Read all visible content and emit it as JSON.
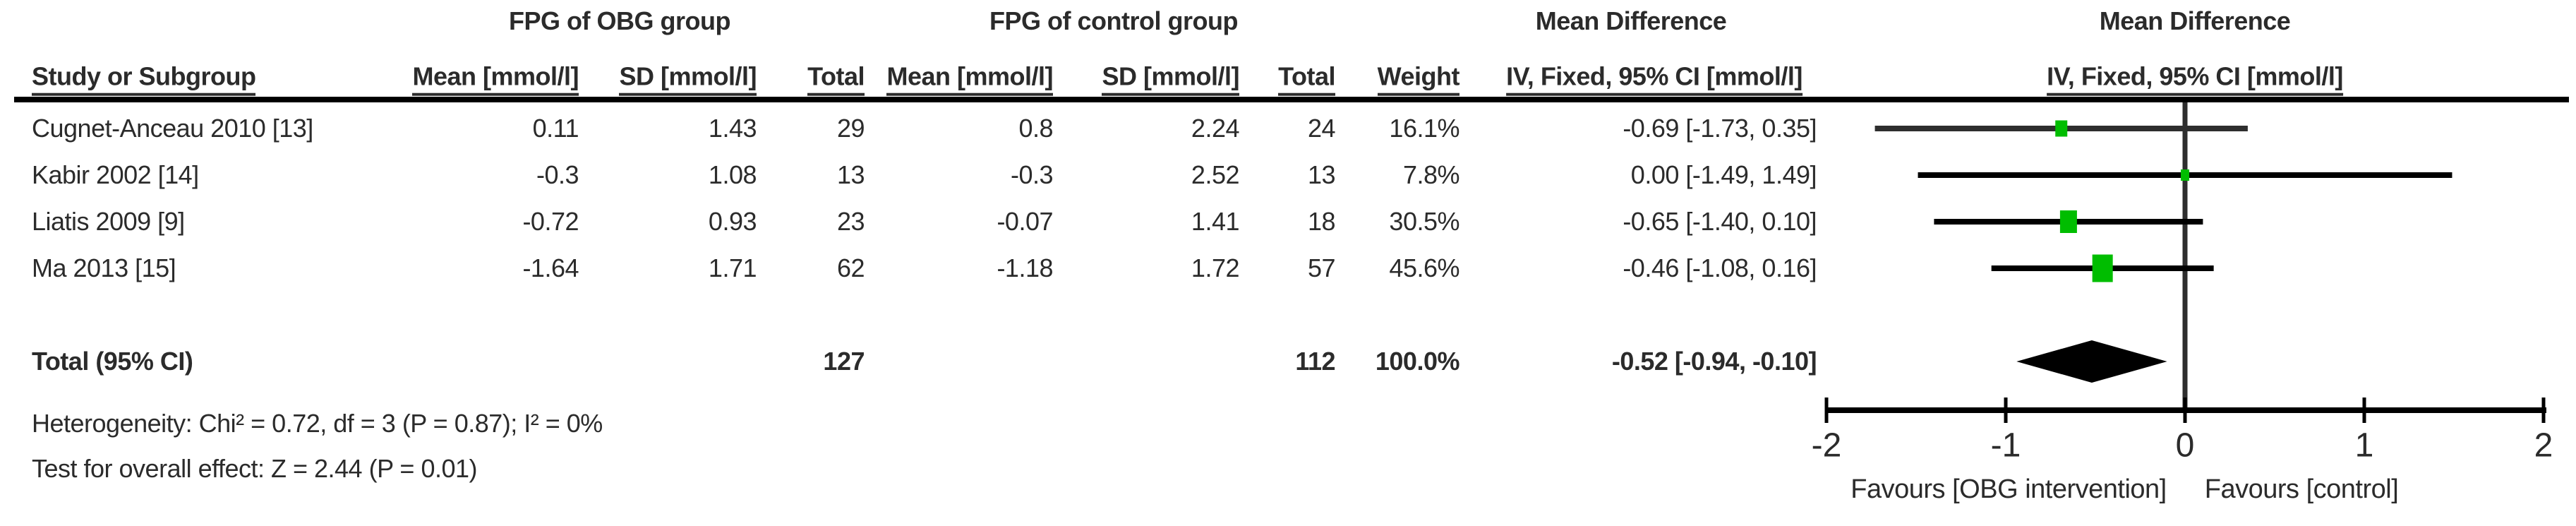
{
  "table": {
    "group_headers": [
      {
        "label": "FPG of OBG group"
      },
      {
        "label": "FPG of control group"
      },
      {
        "label": "Mean Difference"
      },
      {
        "label": "Mean Difference"
      }
    ],
    "columns": {
      "study": "Study or Subgroup",
      "mean1": "Mean [mmol/l]",
      "sd1": "SD [mmol/l]",
      "total1": "Total",
      "mean2": "Mean [mmol/l]",
      "sd2": "SD [mmol/l]",
      "total2": "Total",
      "weight": "Weight",
      "ci_text": "IV, Fixed, 95% CI [mmol/l]",
      "ci_plot": "IV, Fixed, 95% CI [mmol/l]"
    },
    "rows": [
      {
        "study": "Cugnet-Anceau 2010 [13]",
        "mean1": "0.11",
        "sd1": "1.43",
        "total1": "29",
        "mean2": "0.8",
        "sd2": "2.24",
        "total2": "24",
        "weight": "16.1%",
        "ci": "-0.69 [-1.73, 0.35]"
      },
      {
        "study": "Kabir 2002 [14]",
        "mean1": "-0.3",
        "sd1": "1.08",
        "total1": "13",
        "mean2": "-0.3",
        "sd2": "2.52",
        "total2": "13",
        "weight": "7.8%",
        "ci": "0.00 [-1.49, 1.49]"
      },
      {
        "study": "Liatis 2009 [9]",
        "mean1": "-0.72",
        "sd1": "0.93",
        "total1": "23",
        "mean2": "-0.07",
        "sd2": "1.41",
        "total2": "18",
        "weight": "30.5%",
        "ci": "-0.65 [-1.40, 0.10]"
      },
      {
        "study": "Ma 2013 [15]",
        "mean1": "-1.64",
        "sd1": "1.71",
        "total1": "62",
        "mean2": "-1.18",
        "sd2": "1.72",
        "total2": "57",
        "weight": "45.6%",
        "ci": "-0.46 [-1.08, 0.16]"
      }
    ],
    "total_row": {
      "label": "Total (95% CI)",
      "total1": "127",
      "total2": "112",
      "weight": "100.0%",
      "ci": "-0.52 [-0.94, -0.10]"
    },
    "footnotes": {
      "heterogeneity": "Heterogeneity: Chi² = 0.72, df = 3 (P = 0.87); I² = 0%",
      "overall_effect": "Test for overall effect: Z = 2.44 (P = 0.01)"
    }
  },
  "chart_data": {
    "type": "forest",
    "effect_measure": "Mean Difference",
    "method": "IV, Fixed, 95% CI",
    "unit": "mmol/l",
    "studies": [
      {
        "name": "Cugnet-Anceau 2010 [13]",
        "mean_obg": 0.11,
        "sd_obg": 1.43,
        "total_obg": 29,
        "mean_control": 0.8,
        "sd_control": 2.24,
        "total_control": 24,
        "weight_pct": 16.1,
        "est": -0.69,
        "ci_low": -1.73,
        "ci_high": 0.35,
        "line_color": "#2e2e2e"
      },
      {
        "name": "Kabir 2002 [14]",
        "mean_obg": -0.3,
        "sd_obg": 1.08,
        "total_obg": 13,
        "mean_control": -0.3,
        "sd_control": 2.52,
        "total_control": 13,
        "weight_pct": 7.8,
        "est": 0.0,
        "ci_low": -1.49,
        "ci_high": 1.49,
        "line_color": "#000000"
      },
      {
        "name": "Liatis 2009 [9]",
        "mean_obg": -0.72,
        "sd_obg": 0.93,
        "total_obg": 23,
        "mean_control": -0.07,
        "sd_control": 1.41,
        "total_control": 18,
        "weight_pct": 30.5,
        "est": -0.65,
        "ci_low": -1.4,
        "ci_high": 0.1,
        "line_color": "#000000"
      },
      {
        "name": "Ma 2013 [15]",
        "mean_obg": -1.64,
        "sd_obg": 1.71,
        "total_obg": 62,
        "mean_control": -1.18,
        "sd_control": 1.72,
        "total_control": 57,
        "weight_pct": 45.6,
        "est": -0.46,
        "ci_low": -1.08,
        "ci_high": 0.16,
        "line_color": "#000000"
      }
    ],
    "overall": {
      "label": "Total (95% CI)",
      "total_obg": 127,
      "total_control": 112,
      "weight_pct": 100.0,
      "est": -0.52,
      "ci_low": -0.94,
      "ci_high": -0.1
    },
    "heterogeneity": "Heterogeneity: Chi² = 0.72, df = 3 (P = 0.87); I² = 0%",
    "overall_test": "Test for overall effect: Z = 2.44 (P = 0.01)",
    "axis": {
      "min": -2,
      "max": 2,
      "ticks": [
        -2,
        -1,
        0,
        1,
        2
      ],
      "tick_labels": [
        "-2",
        "-1",
        "0",
        "1",
        "2"
      ],
      "favours_left": "Favours [OBG intervention]",
      "favours_right": "Favours [control]"
    },
    "colors": {
      "marker_green": "#00bd00",
      "diamond": "#000000",
      "zero_line": "#2e2e2e",
      "axis_line": "#000000",
      "text": "#2b2b2b"
    }
  }
}
